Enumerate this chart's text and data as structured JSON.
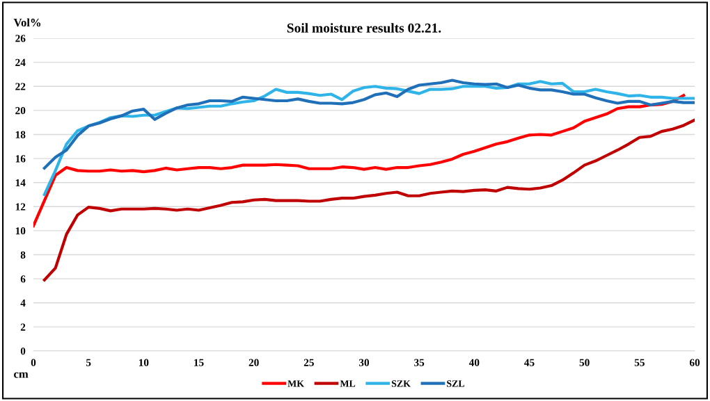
{
  "chart_data": {
    "type": "line",
    "title": "Soil moisture results 02.21.",
    "ylabel": "Vol%",
    "xlabel": "cm",
    "xlim": [
      0,
      60
    ],
    "xticks": [
      0,
      5,
      10,
      15,
      20,
      25,
      30,
      35,
      40,
      45,
      50,
      55,
      60
    ],
    "ylim": [
      0,
      26
    ],
    "yticks": [
      0,
      2,
      4,
      6,
      8,
      10,
      12,
      14,
      16,
      18,
      20,
      22,
      24,
      26
    ],
    "grid": "y",
    "legend": "bottom",
    "marker": "none",
    "line_style": "solid",
    "series": [
      {
        "name": "MK",
        "color": "#ff0000",
        "x": [
          0,
          1,
          2,
          3,
          4,
          5,
          6,
          7,
          8,
          9,
          10,
          11,
          12,
          13,
          14,
          15,
          16,
          17,
          18,
          19,
          20,
          21,
          22,
          23,
          24,
          25,
          26,
          27,
          28,
          29,
          30,
          31,
          32,
          33,
          34,
          35,
          36,
          37,
          38,
          39,
          40,
          41,
          42,
          43,
          44,
          45,
          46,
          47,
          48,
          49,
          50,
          51,
          52,
          53,
          54,
          55,
          56,
          57,
          58,
          59
        ],
        "values": [
          10.4,
          12.5,
          14.6,
          15.25,
          15.0,
          14.95,
          14.95,
          15.05,
          14.95,
          15.0,
          14.9,
          15.0,
          15.2,
          15.05,
          15.15,
          15.25,
          15.25,
          15.15,
          15.25,
          15.45,
          15.45,
          15.45,
          15.5,
          15.45,
          15.4,
          15.15,
          15.15,
          15.15,
          15.3,
          15.25,
          15.1,
          15.25,
          15.1,
          15.25,
          15.25,
          15.4,
          15.5,
          15.7,
          15.95,
          16.35,
          16.6,
          16.9,
          17.2,
          17.4,
          17.7,
          17.95,
          18.0,
          17.95,
          18.25,
          18.55,
          19.1,
          19.4,
          19.7,
          20.15,
          20.3,
          20.3,
          20.45,
          20.5,
          20.75,
          21.25
        ]
      },
      {
        "name": "ML",
        "color": "#c00000",
        "x": [
          1,
          2,
          3,
          4,
          5,
          6,
          7,
          8,
          9,
          10,
          11,
          12,
          13,
          14,
          15,
          16,
          17,
          18,
          19,
          20,
          21,
          22,
          23,
          24,
          25,
          26,
          27,
          28,
          29,
          30,
          31,
          32,
          33,
          34,
          35,
          36,
          37,
          38,
          39,
          40,
          41,
          42,
          43,
          44,
          45,
          46,
          47,
          48,
          49,
          50,
          51,
          52,
          53,
          54,
          55,
          56,
          57,
          58,
          59,
          60
        ],
        "values": [
          5.9,
          6.9,
          9.7,
          11.3,
          11.95,
          11.85,
          11.65,
          11.8,
          11.8,
          11.8,
          11.85,
          11.8,
          11.7,
          11.8,
          11.7,
          11.9,
          12.1,
          12.35,
          12.4,
          12.55,
          12.6,
          12.5,
          12.5,
          12.5,
          12.45,
          12.45,
          12.6,
          12.7,
          12.7,
          12.85,
          12.95,
          13.1,
          13.2,
          12.9,
          12.9,
          13.1,
          13.2,
          13.3,
          13.25,
          13.35,
          13.4,
          13.3,
          13.6,
          13.5,
          13.45,
          13.55,
          13.75,
          14.2,
          14.8,
          15.45,
          15.8,
          16.25,
          16.7,
          17.2,
          17.75,
          17.85,
          18.25,
          18.45,
          18.75,
          19.2
        ]
      },
      {
        "name": "SZK",
        "color": "#2eb4e8",
        "x": [
          1,
          2,
          3,
          4,
          5,
          6,
          7,
          8,
          9,
          10,
          11,
          12,
          13,
          14,
          15,
          16,
          17,
          18,
          19,
          20,
          21,
          22,
          23,
          24,
          25,
          26,
          27,
          28,
          29,
          30,
          31,
          32,
          33,
          34,
          35,
          36,
          37,
          38,
          39,
          40,
          41,
          42,
          43,
          44,
          45,
          46,
          47,
          48,
          49,
          50,
          51,
          52,
          53,
          54,
          55,
          56,
          57,
          58,
          59,
          60
        ],
        "values": [
          13.0,
          15.0,
          17.2,
          18.3,
          18.7,
          19.0,
          19.4,
          19.55,
          19.5,
          19.6,
          19.6,
          19.9,
          20.2,
          20.15,
          20.25,
          20.35,
          20.35,
          20.55,
          20.7,
          20.8,
          21.2,
          21.75,
          21.5,
          21.5,
          21.4,
          21.25,
          21.35,
          20.9,
          21.6,
          21.9,
          22.0,
          21.85,
          21.8,
          21.6,
          21.4,
          21.75,
          21.75,
          21.8,
          22.0,
          22.0,
          22.0,
          21.85,
          21.9,
          22.2,
          22.2,
          22.4,
          22.2,
          22.25,
          21.55,
          21.55,
          21.75,
          21.55,
          21.4,
          21.2,
          21.25,
          21.1,
          21.1,
          21.0,
          21.0,
          21.0
        ]
      },
      {
        "name": "SZL",
        "color": "#1f70b8",
        "x": [
          1,
          2,
          3,
          4,
          5,
          6,
          7,
          8,
          9,
          10,
          11,
          12,
          13,
          14,
          15,
          16,
          17,
          18,
          19,
          20,
          21,
          22,
          23,
          24,
          25,
          26,
          27,
          28,
          29,
          30,
          31,
          32,
          33,
          34,
          35,
          36,
          37,
          38,
          39,
          40,
          41,
          42,
          43,
          44,
          45,
          46,
          47,
          48,
          49,
          50,
          51,
          52,
          53,
          54,
          55,
          56,
          57,
          58,
          59,
          60
        ],
        "values": [
          15.2,
          16.1,
          16.7,
          17.9,
          18.7,
          18.95,
          19.3,
          19.55,
          19.95,
          20.1,
          19.25,
          19.75,
          20.2,
          20.45,
          20.55,
          20.8,
          20.8,
          20.75,
          21.1,
          21.0,
          20.9,
          20.8,
          20.8,
          20.95,
          20.75,
          20.6,
          20.6,
          20.55,
          20.65,
          20.9,
          21.3,
          21.45,
          21.15,
          21.75,
          22.1,
          22.2,
          22.3,
          22.5,
          22.3,
          22.2,
          22.15,
          22.2,
          21.9,
          22.1,
          21.85,
          21.7,
          21.7,
          21.55,
          21.35,
          21.35,
          21.05,
          20.8,
          20.6,
          20.75,
          20.75,
          20.45,
          20.6,
          20.75,
          20.65,
          20.65
        ]
      }
    ]
  }
}
